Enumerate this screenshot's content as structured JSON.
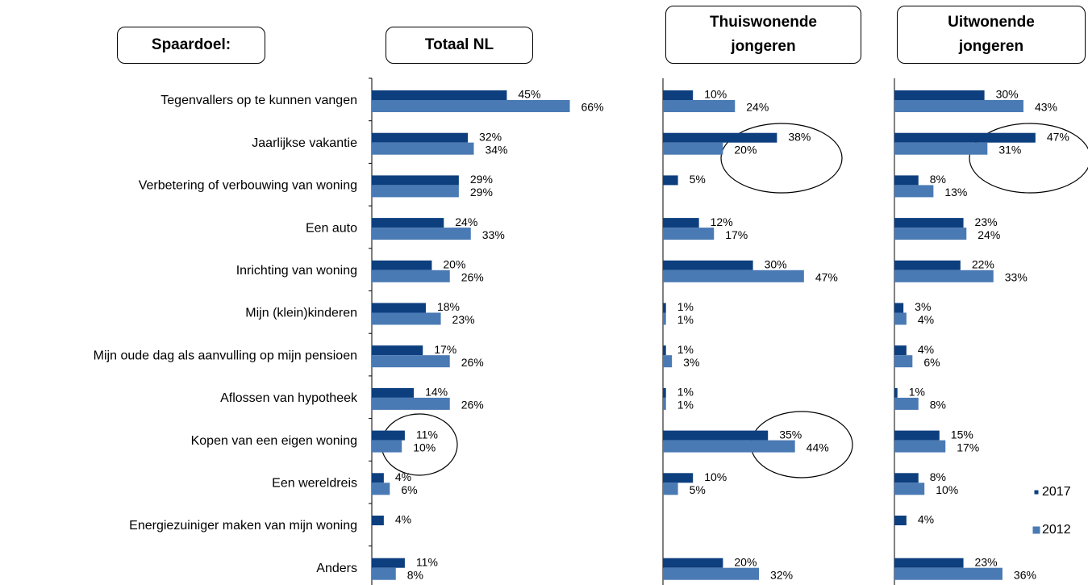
{
  "chart_data": {
    "type": "bar",
    "header": "Spaardoel:",
    "categories": [
      "Tegenvallers op te kunnen vangen",
      "Jaarlijkse vakantie",
      "Verbetering of verbouwing van woning",
      "Een auto",
      "Inrichting van woning",
      "Mijn (klein)kinderen",
      "Mijn oude dag als aanvulling op mijn pensioen",
      "Aflossen van hypotheek",
      "Kopen van een eigen woning",
      "Een wereldreis",
      "Energiezuiniger maken van mijn woning",
      "Anders"
    ],
    "series": [
      {
        "name": "2017",
        "color": "#0d3f7f"
      },
      {
        "name": "2012",
        "color": "#4a7ab4"
      }
    ],
    "panels": [
      {
        "title": "Totaal NL",
        "series": [
          {
            "values": [
              45,
              32,
              29,
              24,
              20,
              18,
              17,
              14,
              11,
              4,
              4,
              11
            ],
            "value_labels": [
              "45%",
              "32%",
              "29%",
              "24%",
              "20%",
              "18%",
              "17%",
              "14%",
              "11%",
              "4%",
              "4%",
              "11%"
            ]
          },
          {
            "values": [
              66,
              34,
              29,
              33,
              26,
              23,
              26,
              26,
              10,
              6,
              null,
              8
            ],
            "value_labels": [
              "66%",
              "34%",
              "29%",
              "33%",
              "26%",
              "23%",
              "26%",
              "26%",
              "10%",
              "6%",
              null,
              "8%"
            ]
          }
        ]
      },
      {
        "title": "Thuiswonende jongeren",
        "series": [
          {
            "values": [
              10,
              38,
              5,
              12,
              30,
              1,
              1,
              1,
              35,
              10,
              null,
              20
            ],
            "value_labels": [
              "10%",
              "38%",
              "5%",
              "12%",
              "30%",
              "1%",
              "1%",
              "1%",
              "35%",
              "10%",
              null,
              "20%"
            ]
          },
          {
            "values": [
              24,
              20,
              null,
              17,
              47,
              1,
              3,
              1,
              44,
              5,
              null,
              32
            ],
            "value_labels": [
              "24%",
              "20%",
              null,
              "17%",
              "47%",
              "1%",
              "3%",
              "1%",
              "44%",
              "5%",
              null,
              "32%"
            ]
          }
        ]
      },
      {
        "title": "Uitwonende jongeren",
        "series": [
          {
            "values": [
              30,
              47,
              8,
              23,
              22,
              3,
              4,
              1,
              15,
              8,
              4,
              23
            ],
            "value_labels": [
              "30%",
              "47%",
              "8%",
              "23%",
              "22%",
              "3%",
              "4%",
              "1%",
              "15%",
              "8%",
              "4%",
              "23%"
            ]
          },
          {
            "values": [
              43,
              31,
              13,
              24,
              33,
              4,
              6,
              8,
              17,
              10,
              null,
              36
            ],
            "value_labels": [
              "43%",
              "31%",
              "13%",
              "24%",
              "33%",
              "4%",
              "6%",
              "8%",
              "17%",
              "10%",
              null,
              "36%"
            ]
          }
        ]
      }
    ]
  }
}
